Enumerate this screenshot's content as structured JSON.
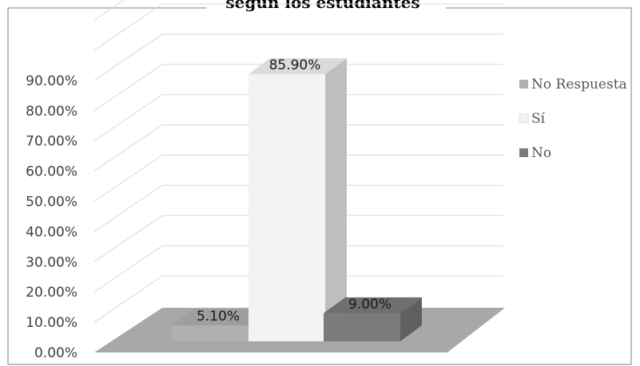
{
  "chart_data": {
    "type": "bar",
    "title": "según los estudiantes",
    "categories": [
      "No Respuesta",
      "Sí",
      "No"
    ],
    "values": [
      5.1,
      85.9,
      9.0
    ],
    "data_labels": [
      "5.10%",
      "85.90%",
      "9.00%"
    ],
    "ylim": [
      0,
      90
    ],
    "y_ticks": [
      {
        "value": 0,
        "label": "0.00%"
      },
      {
        "value": 10,
        "label": "10.00%"
      },
      {
        "value": 20,
        "label": "20.00%"
      },
      {
        "value": 30,
        "label": "30.00%"
      },
      {
        "value": 40,
        "label": "40.00%"
      },
      {
        "value": 50,
        "label": "50.00%"
      },
      {
        "value": 60,
        "label": "60.00%"
      },
      {
        "value": 70,
        "label": "70.00%"
      },
      {
        "value": 80,
        "label": "80.00%"
      },
      {
        "value": 90,
        "label": "90.00%"
      }
    ],
    "grid": true,
    "legend": {
      "position": "right",
      "entries": [
        {
          "label": "No Respuesta",
          "color": "#b0b0b0"
        },
        {
          "label": "Sí",
          "color": "#f3f3f3"
        },
        {
          "label": "No",
          "color": "#7b7b7b"
        }
      ]
    },
    "colors": {
      "floor": "#a8a8a8",
      "grid": "#d9d9d9",
      "border": "#7f7f7f"
    }
  }
}
